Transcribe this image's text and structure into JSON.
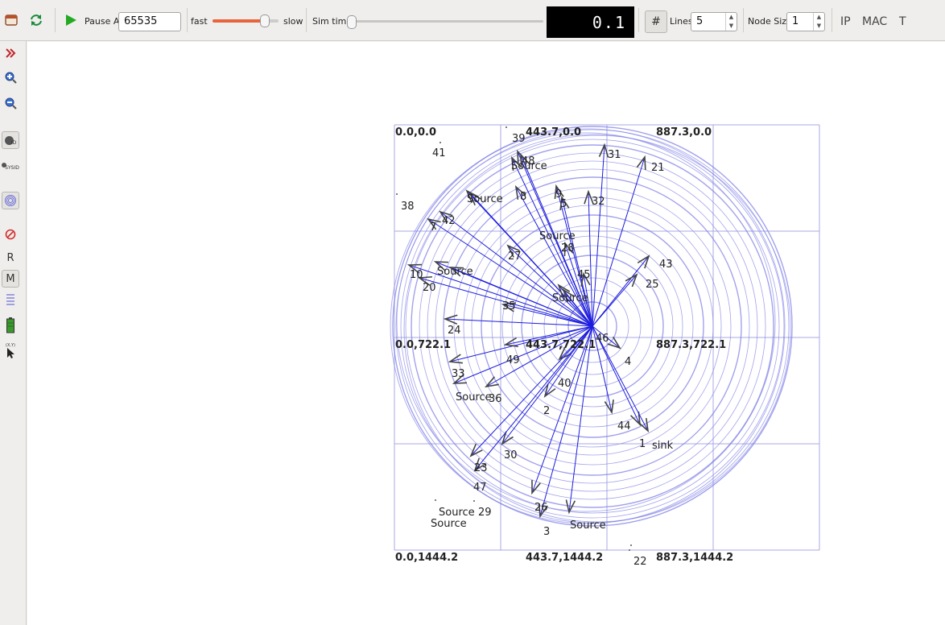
{
  "toolbar": {
    "pause_at_label": "Pause At",
    "pause_at_value": "65535",
    "fast_label": "fast",
    "slow_label": "slow",
    "sim_time_label": "Sim time",
    "sim_time_display": "0.1",
    "grid_icon_glyph": "#",
    "lines_label": "Lines",
    "lines_value": "5",
    "node_size_label": "Node Size",
    "node_size_value": "1",
    "ip_label": "IP",
    "mac_label": "MAC",
    "t_label": "T",
    "speed_slider_level": 0.84,
    "sim_time_slider_level": 0.0
  },
  "left_panel": {
    "r_label": "R",
    "m_label": "M",
    "sysid_label": "SYSID",
    "id_label": "ID",
    "xy_label": "(X,Y)"
  },
  "icons": [
    "open-icon",
    "reload-icon",
    "play-icon",
    "expand-icon",
    "zoom-in-icon",
    "zoom-out-icon",
    "node-id-icon",
    "sysid-icon",
    "wifi-range-icon",
    "no-entry-icon",
    "lines-icon",
    "battery-icon",
    "cursor-icon"
  ],
  "colors": {
    "link": "#1d1ddd",
    "range": "#7b7be6",
    "grid": "#a9a9e4",
    "arrow": "#444444",
    "lcd_bg": "#000000",
    "play": "#22aa22"
  },
  "grid": {
    "corner_labels": [
      "0.0,0.0",
      "443.7,0.0",
      "887.3,0.0",
      "0.0,722.1",
      "443.7,722.1",
      "887.3,722.1",
      "0.0,1444.2",
      "443.7,1444.2",
      "887.3,1444.2"
    ]
  },
  "nodes": [
    {
      "label": "39"
    },
    {
      "label": "48"
    },
    {
      "label": "Source"
    },
    {
      "label": "31"
    },
    {
      "label": "21"
    },
    {
      "label": "41"
    },
    {
      "label": "Source"
    },
    {
      "label": "9"
    },
    {
      "label": "5"
    },
    {
      "label": "32"
    },
    {
      "label": "38"
    },
    {
      "label": "42"
    },
    {
      "label": "7"
    },
    {
      "label": "Source"
    },
    {
      "label": "28"
    },
    {
      "label": "27"
    },
    {
      "label": "43"
    },
    {
      "label": "Source"
    },
    {
      "label": "45"
    },
    {
      "label": "10"
    },
    {
      "label": "25"
    },
    {
      "label": "20"
    },
    {
      "label": "Source"
    },
    {
      "label": "35"
    },
    {
      "label": "24"
    },
    {
      "label": "46"
    },
    {
      "label": "4"
    },
    {
      "label": "49"
    },
    {
      "label": "33"
    },
    {
      "label": "40"
    },
    {
      "label": "Source"
    },
    {
      "label": "36"
    },
    {
      "label": "2"
    },
    {
      "label": "44"
    },
    {
      "label": "1"
    },
    {
      "label": "sink"
    },
    {
      "label": "30"
    },
    {
      "label": "23"
    },
    {
      "label": "47"
    },
    {
      "label": "Source"
    },
    {
      "label": "29"
    },
    {
      "label": "Source"
    },
    {
      "label": "26"
    },
    {
      "label": "3"
    },
    {
      "label": "Source"
    },
    {
      "label": "22"
    },
    {
      "label": "8"
    }
  ]
}
